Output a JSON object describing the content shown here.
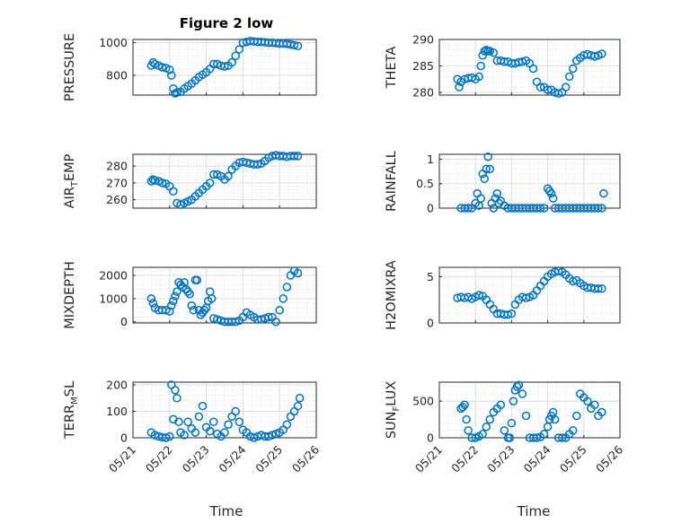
{
  "figure": {
    "title": "Figure 2 low",
    "xlabel_left": "Time",
    "xlabel_right": "Time",
    "x_tick_labels": [
      "05/21",
      "05/22",
      "05/23",
      "05/24",
      "05/25",
      "05/26"
    ]
  },
  "chart_data": [
    {
      "type": "scatter",
      "ylabel": "PRESSURE",
      "xlim": [
        0,
        5
      ],
      "ylim": [
        680,
        1020
      ],
      "yticks": [
        800,
        1000
      ],
      "x": [
        0.5,
        0.55,
        0.6,
        0.7,
        0.8,
        0.9,
        1.0,
        1.05,
        1.1,
        1.15,
        1.2,
        1.3,
        1.4,
        1.5,
        1.6,
        1.7,
        1.8,
        1.9,
        2.0,
        2.1,
        2.2,
        2.3,
        2.4,
        2.5,
        2.6,
        2.7,
        2.8,
        2.9,
        3.0,
        3.1,
        3.2,
        3.3,
        3.4,
        3.5,
        3.6,
        3.7,
        3.8,
        3.9,
        4.0,
        4.1,
        4.2,
        4.3,
        4.4,
        4.5
      ],
      "y": [
        860,
        880,
        870,
        860,
        850,
        845,
        835,
        800,
        720,
        690,
        695,
        700,
        720,
        735,
        750,
        770,
        790,
        805,
        820,
        840,
        870,
        870,
        860,
        855,
        860,
        880,
        920,
        960,
        1000,
        1005,
        1010,
        1008,
        1005,
        1005,
        1003,
        1000,
        1000,
        998,
        995,
        995,
        993,
        990,
        985,
        980
      ]
    },
    {
      "type": "scatter",
      "ylabel": "THETA",
      "xlim": [
        0,
        5
      ],
      "ylim": [
        279.5,
        290
      ],
      "yticks": [
        280,
        285,
        290
      ],
      "x": [
        0.5,
        0.55,
        0.6,
        0.7,
        0.8,
        0.9,
        1.0,
        1.1,
        1.15,
        1.2,
        1.25,
        1.3,
        1.35,
        1.4,
        1.5,
        1.6,
        1.7,
        1.8,
        1.9,
        2.0,
        2.1,
        2.2,
        2.3,
        2.4,
        2.5,
        2.6,
        2.7,
        2.8,
        2.9,
        3.0,
        3.1,
        3.2,
        3.3,
        3.4,
        3.5,
        3.6,
        3.7,
        3.8,
        3.9,
        4.0,
        4.1,
        4.2,
        4.3,
        4.4,
        4.5
      ],
      "y": [
        282.5,
        281,
        282,
        282.5,
        282.7,
        282.8,
        282.5,
        283,
        285,
        287,
        287.8,
        288,
        287.8,
        287.8,
        287.5,
        286,
        286,
        285.8,
        285.8,
        285.5,
        285.5,
        285.7,
        285.8,
        286,
        285.5,
        284.5,
        282,
        281,
        281,
        280.5,
        280.5,
        280,
        279.8,
        280,
        281,
        283,
        284.5,
        286,
        286.5,
        287,
        287.2,
        287,
        286.8,
        287,
        287.3
      ]
    },
    {
      "type": "scatter",
      "ylabel": "AIR_TEMP",
      "xlim": [
        0,
        5
      ],
      "ylim": [
        255,
        287
      ],
      "yticks": [
        260,
        270,
        280
      ],
      "x": [
        0.5,
        0.55,
        0.6,
        0.7,
        0.8,
        0.9,
        1.0,
        1.1,
        1.2,
        1.3,
        1.4,
        1.5,
        1.6,
        1.7,
        1.8,
        1.9,
        2.0,
        2.1,
        2.2,
        2.3,
        2.4,
        2.5,
        2.6,
        2.7,
        2.8,
        2.9,
        3.0,
        3.1,
        3.2,
        3.3,
        3.4,
        3.5,
        3.6,
        3.7,
        3.8,
        3.9,
        4.0,
        4.1,
        4.2,
        4.3,
        4.4,
        4.5
      ],
      "y": [
        271,
        272,
        271.5,
        271,
        270,
        269.5,
        268,
        265,
        258,
        257,
        258,
        259,
        260,
        262,
        264,
        266,
        268,
        270,
        275,
        275,
        274,
        272,
        274,
        278,
        280,
        282,
        282.5,
        282,
        281.5,
        281,
        281,
        281.5,
        283,
        285,
        286,
        286.5,
        286,
        286,
        285.5,
        286,
        286,
        286
      ]
    },
    {
      "type": "scatter",
      "ylabel": "RAINFALL",
      "xlim": [
        0,
        5
      ],
      "ylim": [
        0,
        1.1
      ],
      "yticks": [
        0,
        0.5,
        1
      ],
      "x": [
        0.6,
        0.7,
        0.8,
        0.9,
        1.0,
        1.05,
        1.1,
        1.15,
        1.2,
        1.25,
        1.3,
        1.35,
        1.4,
        1.45,
        1.5,
        1.55,
        1.6,
        1.65,
        1.7,
        1.8,
        1.9,
        2.0,
        2.1,
        2.2,
        2.3,
        2.4,
        2.5,
        2.6,
        2.7,
        2.8,
        2.9,
        3.0,
        3.05,
        3.1,
        3.15,
        3.2,
        3.3,
        3.4,
        3.5,
        3.6,
        3.7,
        3.8,
        3.9,
        4.0,
        4.1,
        4.2,
        4.3,
        4.4,
        4.5,
        4.55
      ],
      "y": [
        0,
        0,
        0,
        0,
        0.1,
        0.3,
        0.05,
        0.2,
        0.7,
        0.6,
        0.8,
        1.05,
        0.8,
        0.1,
        0,
        0.2,
        0.3,
        0.1,
        0.15,
        0.05,
        0,
        0,
        0,
        0,
        0,
        0,
        0,
        0,
        0,
        0,
        0,
        0.4,
        0.35,
        0.3,
        0.2,
        0,
        0,
        0,
        0,
        0,
        0,
        0,
        0,
        0,
        0,
        0,
        0,
        0,
        0,
        0.3
      ]
    },
    {
      "type": "scatter",
      "ylabel": "MIXDEPTH",
      "xlim": [
        0,
        5
      ],
      "ylim": [
        -50,
        2350
      ],
      "yticks": [
        0,
        1000,
        2000
      ],
      "x": [
        0.5,
        0.55,
        0.6,
        0.7,
        0.8,
        0.9,
        1.0,
        1.05,
        1.1,
        1.15,
        1.2,
        1.25,
        1.3,
        1.35,
        1.4,
        1.45,
        1.5,
        1.55,
        1.6,
        1.65,
        1.7,
        1.75,
        1.8,
        1.85,
        1.9,
        1.95,
        2.0,
        2.05,
        2.1,
        2.15,
        2.2,
        2.3,
        2.4,
        2.5,
        2.6,
        2.7,
        2.8,
        2.9,
        3.0,
        3.1,
        3.2,
        3.3,
        3.4,
        3.5,
        3.6,
        3.7,
        3.8,
        3.9,
        4.0,
        4.1,
        4.2,
        4.3,
        4.4,
        4.5
      ],
      "y": [
        1000,
        800,
        600,
        500,
        500,
        500,
        450,
        700,
        900,
        1100,
        1300,
        1700,
        1600,
        1500,
        1700,
        1400,
        1300,
        1200,
        700,
        500,
        1800,
        1800,
        500,
        300,
        400,
        500,
        600,
        900,
        1300,
        1000,
        150,
        100,
        50,
        0,
        0,
        0,
        0,
        50,
        200,
        400,
        300,
        200,
        100,
        100,
        150,
        200,
        200,
        0,
        500,
        1000,
        1500,
        2000,
        2200,
        2100
      ]
    },
    {
      "type": "scatter",
      "ylabel": "H2OMIXRA",
      "xlim": [
        0,
        5
      ],
      "ylim": [
        0,
        6
      ],
      "yticks": [
        0,
        5
      ],
      "x": [
        0.5,
        0.6,
        0.7,
        0.8,
        0.9,
        1.0,
        1.1,
        1.2,
        1.3,
        1.4,
        1.5,
        1.6,
        1.7,
        1.8,
        1.9,
        2.0,
        2.1,
        2.2,
        2.3,
        2.4,
        2.5,
        2.6,
        2.7,
        2.8,
        2.9,
        3.0,
        3.1,
        3.2,
        3.3,
        3.4,
        3.5,
        3.6,
        3.7,
        3.8,
        3.9,
        4.0,
        4.1,
        4.2,
        4.3,
        4.4,
        4.5
      ],
      "y": [
        2.7,
        2.8,
        2.7,
        2.8,
        2.6,
        2.8,
        3.0,
        2.9,
        2.5,
        2.0,
        1.5,
        1.0,
        1.0,
        0.9,
        0.9,
        1.0,
        2.0,
        2.5,
        2.8,
        2.7,
        2.8,
        3.0,
        3.5,
        4.0,
        4.5,
        5.0,
        5.3,
        5.5,
        5.6,
        5.5,
        5.2,
        4.8,
        4.5,
        4.6,
        4.3,
        4.0,
        3.8,
        3.8,
        3.7,
        3.7,
        3.7
      ]
    },
    {
      "type": "scatter",
      "ylabel": "TERR_MSL",
      "xlim": [
        0,
        5
      ],
      "ylim": [
        0,
        210
      ],
      "yticks": [
        0,
        100,
        200
      ],
      "x": [
        0.5,
        0.6,
        0.7,
        0.8,
        0.9,
        1.0,
        1.05,
        1.1,
        1.15,
        1.2,
        1.25,
        1.3,
        1.4,
        1.5,
        1.6,
        1.7,
        1.8,
        1.9,
        2.0,
        2.1,
        2.2,
        2.3,
        2.4,
        2.5,
        2.6,
        2.7,
        2.8,
        2.9,
        3.0,
        3.1,
        3.2,
        3.3,
        3.4,
        3.5,
        3.6,
        3.7,
        3.8,
        3.9,
        4.0,
        4.1,
        4.2,
        4.3,
        4.4,
        4.5,
        4.55
      ],
      "y": [
        20,
        10,
        5,
        2,
        0,
        5,
        200,
        70,
        180,
        150,
        60,
        20,
        10,
        60,
        35,
        20,
        80,
        120,
        40,
        25,
        60,
        15,
        5,
        20,
        50,
        80,
        100,
        60,
        30,
        20,
        5,
        0,
        5,
        10,
        5,
        5,
        10,
        15,
        20,
        30,
        50,
        80,
        100,
        120,
        150
      ]
    },
    {
      "type": "scatter",
      "ylabel": "SUN_FLUX",
      "xlim": [
        0,
        5
      ],
      "ylim": [
        0,
        760
      ],
      "yticks": [
        0,
        500
      ],
      "x": [
        0.6,
        0.65,
        0.7,
        0.75,
        0.8,
        0.9,
        1.0,
        1.1,
        1.2,
        1.3,
        1.4,
        1.5,
        1.6,
        1.7,
        1.8,
        1.9,
        1.95,
        2.0,
        2.05,
        2.1,
        2.15,
        2.2,
        2.3,
        2.4,
        2.5,
        2.6,
        2.7,
        2.8,
        2.9,
        3.0,
        3.05,
        3.1,
        3.15,
        3.2,
        3.3,
        3.4,
        3.5,
        3.6,
        3.7,
        3.8,
        3.9,
        4.0,
        4.1,
        4.2,
        4.3,
        4.4,
        4.5
      ],
      "y": [
        400,
        420,
        450,
        250,
        100,
        0,
        0,
        20,
        50,
        150,
        250,
        350,
        400,
        450,
        100,
        0,
        0,
        200,
        500,
        650,
        700,
        720,
        600,
        300,
        0,
        0,
        0,
        10,
        50,
        150,
        250,
        300,
        350,
        250,
        0,
        0,
        0,
        50,
        100,
        300,
        600,
        550,
        500,
        400,
        450,
        300,
        350
      ]
    }
  ]
}
